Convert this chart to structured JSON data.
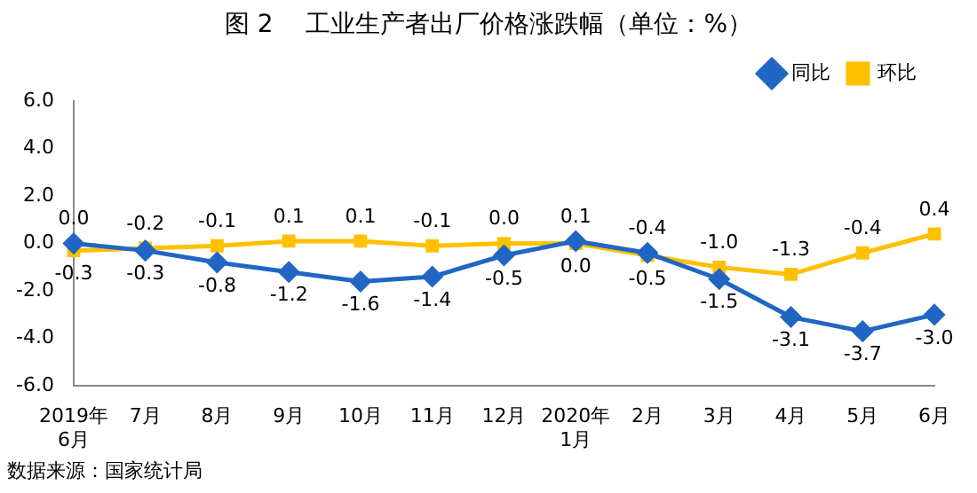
{
  "chart_data": {
    "type": "line",
    "title": "图 2　 工业生产者出厂价格涨跌幅（单位：%）",
    "categories": [
      "2019年\n6月",
      "7月",
      "8月",
      "9月",
      "10月",
      "11月",
      "12月",
      "2020年\n1月",
      "2月",
      "3月",
      "4月",
      "5月",
      "6月"
    ],
    "series": [
      {
        "name": "同比",
        "color": "#2166c4",
        "marker": "diamond",
        "values": [
          0.0,
          -0.3,
          -0.8,
          -1.2,
          -1.6,
          -1.4,
          -0.5,
          0.1,
          -0.4,
          -1.5,
          -3.1,
          -3.7,
          -3.0
        ],
        "value_labels": [
          "0.0",
          "-0.3",
          "-0.8",
          "-1.2",
          "-1.6",
          "-1.4",
          "-0.5",
          "0.1",
          "-0.4",
          "-1.5",
          "-3.1",
          "-3.7",
          "-3.0"
        ]
      },
      {
        "name": "环比",
        "color": "#ffc000",
        "marker": "square",
        "values": [
          -0.3,
          -0.2,
          -0.1,
          0.1,
          0.1,
          -0.1,
          0.0,
          0.0,
          -0.5,
          -1.0,
          -1.3,
          -0.4,
          0.4
        ],
        "value_labels": [
          "-0.3",
          "-0.2",
          "-0.1",
          "0.1",
          "0.1",
          "-0.1",
          "0.0",
          "0.0",
          "-0.5",
          "-1.0",
          "-1.3",
          "-0.4",
          "0.4"
        ]
      }
    ],
    "ylim": [
      -6,
      6
    ],
    "yticks": [
      {
        "value": -6,
        "label": "-6.0"
      },
      {
        "value": -4,
        "label": "-4.0"
      },
      {
        "value": -2,
        "label": "-2.0"
      },
      {
        "value": 0,
        "label": "0.0"
      },
      {
        "value": 2,
        "label": "2.0"
      },
      {
        "value": 4,
        "label": "4.0"
      },
      {
        "value": 6,
        "label": "6.0"
      }
    ],
    "grid": false,
    "legend": "top right",
    "line_style": "solid",
    "annotations": [
      "数据来源：国家统计局"
    ]
  }
}
